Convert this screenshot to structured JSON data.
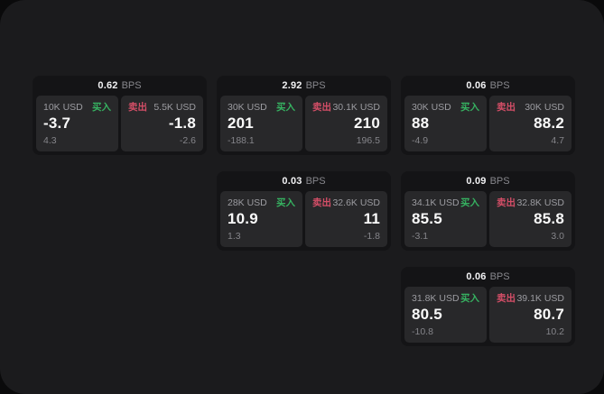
{
  "labels": {
    "bps_unit": "BPS",
    "buy": "买入",
    "sell": "卖出"
  },
  "colors": {
    "buy_green": "#36b261",
    "sell_red": "#d44e67",
    "panel_bg": "#1b1b1d",
    "card_bg": "#141416",
    "tile_bg": "#28282a"
  },
  "cards": [
    {
      "bps": "0.62",
      "buy": {
        "amount": "10K USD",
        "price": "-3.7",
        "sub": "4.3"
      },
      "sell": {
        "amount": "5.5K USD",
        "price": "-1.8",
        "sub": "-2.6"
      }
    },
    {
      "bps": "2.92",
      "buy": {
        "amount": "30K USD",
        "price": "201",
        "sub": "-188.1"
      },
      "sell": {
        "amount": "30.1K USD",
        "price": "210",
        "sub": "196.5"
      }
    },
    {
      "bps": "0.06",
      "buy": {
        "amount": "30K USD",
        "price": "88",
        "sub": "-4.9"
      },
      "sell": {
        "amount": "30K USD",
        "price": "88.2",
        "sub": "4.7"
      }
    },
    {
      "bps": "0.03",
      "buy": {
        "amount": "28K USD",
        "price": "10.9",
        "sub": "1.3"
      },
      "sell": {
        "amount": "32.6K USD",
        "price": "11",
        "sub": "-1.8"
      }
    },
    {
      "bps": "0.09",
      "buy": {
        "amount": "34.1K USD",
        "price": "85.5",
        "sub": "-3.1"
      },
      "sell": {
        "amount": "32.8K USD",
        "price": "85.8",
        "sub": "3.0"
      }
    },
    {
      "bps": "0.06",
      "buy": {
        "amount": "31.8K USD",
        "price": "80.5",
        "sub": "-10.8"
      },
      "sell": {
        "amount": "39.1K USD",
        "price": "80.7",
        "sub": "10.2"
      }
    }
  ]
}
